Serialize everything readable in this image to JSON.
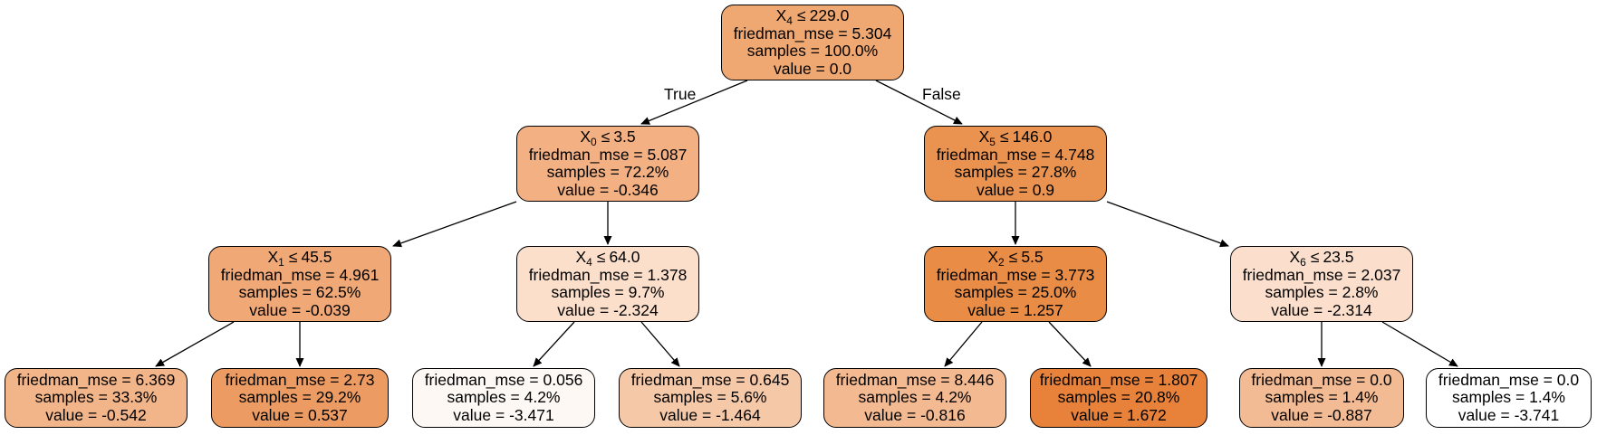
{
  "tree": {
    "nodes": [
      {
        "id": "n0",
        "split": {
          "feature": "X",
          "index": "4",
          "op": "≤",
          "threshold": "229.0"
        },
        "mse": "friedman_mse = 5.304",
        "samples": "samples = 100.0%",
        "value": "value = 0.0",
        "color": "#f0a872"
      },
      {
        "id": "n1",
        "split": {
          "feature": "X",
          "index": "0",
          "op": "≤",
          "threshold": "3.5"
        },
        "mse": "friedman_mse = 5.087",
        "samples": "samples = 72.2%",
        "value": "value = -0.346",
        "color": "#f2b083"
      },
      {
        "id": "n2",
        "split": {
          "feature": "X",
          "index": "5",
          "op": "≤",
          "threshold": "146.0"
        },
        "mse": "friedman_mse = 4.748",
        "samples": "samples = 27.8%",
        "value": "value = 0.9",
        "color": "#ea9350"
      },
      {
        "id": "n3",
        "split": {
          "feature": "X",
          "index": "1",
          "op": "≤",
          "threshold": "45.5"
        },
        "mse": "friedman_mse = 4.961",
        "samples": "samples = 62.5%",
        "value": "value = -0.039",
        "color": "#f0a876"
      },
      {
        "id": "n4",
        "split": {
          "feature": "X",
          "index": "4",
          "op": "≤",
          "threshold": "64.0"
        },
        "mse": "friedman_mse = 1.378",
        "samples": "samples = 9.7%",
        "value": "value = -2.324",
        "color": "#fbdfcb"
      },
      {
        "id": "n5",
        "split": {
          "feature": "X",
          "index": "2",
          "op": "≤",
          "threshold": "5.5"
        },
        "mse": "friedman_mse = 3.773",
        "samples": "samples = 25.0%",
        "value": "value = 1.257",
        "color": "#e98c46"
      },
      {
        "id": "n6",
        "split": {
          "feature": "X",
          "index": "6",
          "op": "≤",
          "threshold": "23.5"
        },
        "mse": "friedman_mse = 2.037",
        "samples": "samples = 2.8%",
        "value": "value = -2.314",
        "color": "#fbdecb"
      },
      {
        "id": "n7",
        "mse": "friedman_mse = 6.369",
        "samples": "samples = 33.3%",
        "value": "value = -0.542",
        "color": "#f2b58a"
      },
      {
        "id": "n8",
        "mse": "friedman_mse = 2.73",
        "samples": "samples = 29.2%",
        "value": "value = 0.537",
        "color": "#ec9c62"
      },
      {
        "id": "n9",
        "mse": "friedman_mse = 0.056",
        "samples": "samples = 4.2%",
        "value": "value = -3.471",
        "color": "#fef8f4"
      },
      {
        "id": "n10",
        "mse": "friedman_mse = 0.645",
        "samples": "samples = 5.6%",
        "value": "value = -1.464",
        "color": "#f5c8a8"
      },
      {
        "id": "n11",
        "mse": "friedman_mse = 8.446",
        "samples": "samples = 4.2%",
        "value": "value = -0.816",
        "color": "#f3b990"
      },
      {
        "id": "n12",
        "mse": "friedman_mse = 1.807",
        "samples": "samples = 20.8%",
        "value": "value = 1.672",
        "color": "#e8813a"
      },
      {
        "id": "n13",
        "mse": "friedman_mse = 0.0",
        "samples": "samples = 1.4%",
        "value": "value = -0.887",
        "color": "#f3bb93"
      },
      {
        "id": "n14",
        "mse": "friedman_mse = 0.0",
        "samples": "samples = 1.4%",
        "value": "value = -3.741",
        "color": "#ffffff"
      }
    ],
    "edges": [
      {
        "from": "n0",
        "to": "n1",
        "label": "True"
      },
      {
        "from": "n0",
        "to": "n2",
        "label": "False"
      },
      {
        "from": "n1",
        "to": "n3"
      },
      {
        "from": "n1",
        "to": "n4"
      },
      {
        "from": "n2",
        "to": "n5"
      },
      {
        "from": "n2",
        "to": "n6"
      },
      {
        "from": "n3",
        "to": "n7"
      },
      {
        "from": "n3",
        "to": "n8"
      },
      {
        "from": "n4",
        "to": "n9"
      },
      {
        "from": "n4",
        "to": "n10"
      },
      {
        "from": "n5",
        "to": "n11"
      },
      {
        "from": "n5",
        "to": "n12"
      },
      {
        "from": "n6",
        "to": "n13"
      },
      {
        "from": "n6",
        "to": "n14"
      }
    ]
  }
}
